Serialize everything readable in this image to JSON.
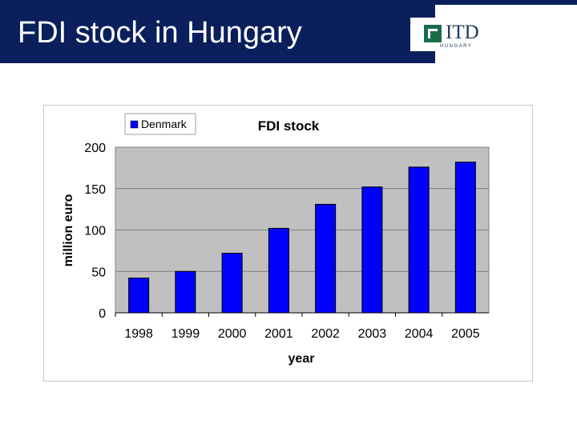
{
  "slide": {
    "title": "FDI stock in Hungary",
    "logo_text": "ITD",
    "logo_subtext": "HUNGARY",
    "colors": {
      "title_bg": "#0a1f5c",
      "logo_mark": "#1a6b4a"
    }
  },
  "chart_data": {
    "type": "bar",
    "title": "FDI stock",
    "xlabel": "year",
    "ylabel": "million euro",
    "categories": [
      "1998",
      "1999",
      "2000",
      "2001",
      "2002",
      "2003",
      "2004",
      "2005"
    ],
    "series": [
      {
        "name": "Denmark",
        "values": [
          42,
          50,
          72,
          102,
          131,
          152,
          176,
          182
        ],
        "color": "#0000ff"
      }
    ],
    "ylim": [
      0,
      200
    ],
    "yticks": [
      0,
      50,
      100,
      150,
      200
    ],
    "grid": true,
    "plot_bg": "#c0c0c0",
    "legend_position": "top-left"
  }
}
